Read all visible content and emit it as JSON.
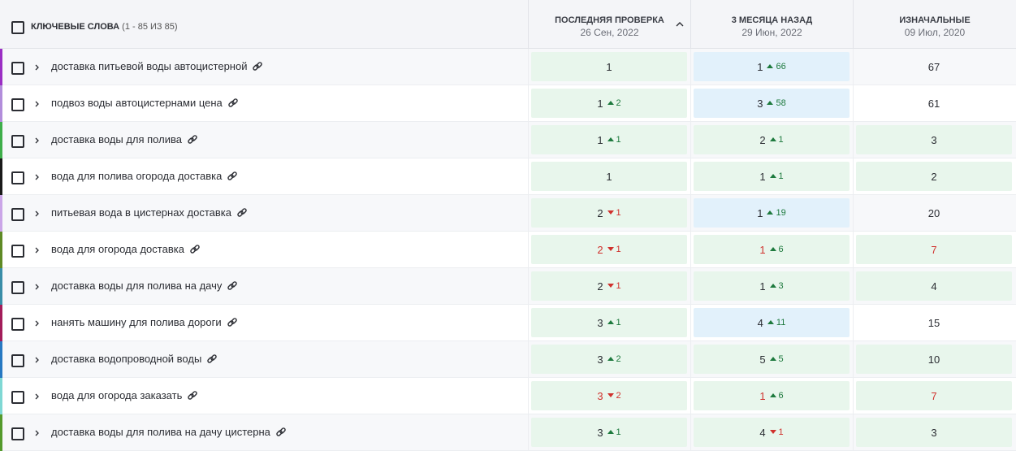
{
  "header": {
    "keywords_label": "КЛЮЧЕВЫЕ СЛОВА",
    "keywords_count": "(1 - 85 ИЗ 85)",
    "columns": [
      {
        "title": "ПОСЛЕДНЯЯ ПРОВЕРКА",
        "date": "26 Сен, 2022",
        "sorted": true
      },
      {
        "title": "3 МЕСЯЦА НАЗАД",
        "date": "29 Июн, 2022",
        "sorted": false
      },
      {
        "title": "ИЗНАЧАЛЬНЫЕ",
        "date": "09 Июл, 2020",
        "sorted": false
      }
    ]
  },
  "rows": [
    {
      "keyword": "доставка питьевой воды автоцистерной",
      "color": "#9b2fc4",
      "cells": [
        {
          "value": 1,
          "change": null,
          "direction": null,
          "bg": "green",
          "tone": "normal"
        },
        {
          "value": 1,
          "change": 66,
          "direction": "up",
          "bg": "blue",
          "tone": "normal"
        },
        {
          "value": 67,
          "change": null,
          "direction": null,
          "bg": "none",
          "tone": "normal"
        }
      ]
    },
    {
      "keyword": "подвоз воды автоцистернами цена",
      "color": "#b28ddb",
      "cells": [
        {
          "value": 1,
          "change": 2,
          "direction": "up",
          "bg": "green",
          "tone": "normal"
        },
        {
          "value": 3,
          "change": 58,
          "direction": "up",
          "bg": "blue",
          "tone": "normal"
        },
        {
          "value": 61,
          "change": null,
          "direction": null,
          "bg": "none",
          "tone": "normal"
        }
      ]
    },
    {
      "keyword": "доставка воды для полива",
      "color": "#3fae4a",
      "cells": [
        {
          "value": 1,
          "change": 1,
          "direction": "up",
          "bg": "green",
          "tone": "normal"
        },
        {
          "value": 2,
          "change": 1,
          "direction": "up",
          "bg": "green",
          "tone": "normal"
        },
        {
          "value": 3,
          "change": null,
          "direction": null,
          "bg": "green",
          "tone": "normal"
        }
      ]
    },
    {
      "keyword": "вода для полива огорода доставка",
      "color": "#1a1a1a",
      "cells": [
        {
          "value": 1,
          "change": null,
          "direction": null,
          "bg": "green",
          "tone": "normal"
        },
        {
          "value": 1,
          "change": 1,
          "direction": "up",
          "bg": "green",
          "tone": "normal"
        },
        {
          "value": 2,
          "change": null,
          "direction": null,
          "bg": "green",
          "tone": "normal"
        }
      ]
    },
    {
      "keyword": "питьевая вода в цистернах доставка",
      "color": "#cba6e8",
      "cells": [
        {
          "value": 2,
          "change": 1,
          "direction": "down",
          "bg": "green",
          "tone": "normal"
        },
        {
          "value": 1,
          "change": 19,
          "direction": "up",
          "bg": "blue",
          "tone": "normal"
        },
        {
          "value": 20,
          "change": null,
          "direction": null,
          "bg": "none",
          "tone": "normal"
        }
      ]
    },
    {
      "keyword": "вода для огорода доставка",
      "color": "#5f8a25",
      "cells": [
        {
          "value": 2,
          "change": 1,
          "direction": "down",
          "bg": "green",
          "tone": "red"
        },
        {
          "value": 1,
          "change": 6,
          "direction": "up",
          "bg": "green",
          "tone": "red"
        },
        {
          "value": 7,
          "change": null,
          "direction": null,
          "bg": "green",
          "tone": "red"
        }
      ]
    },
    {
      "keyword": "доставка воды для полива на дачу",
      "color": "#3a8ea8",
      "cells": [
        {
          "value": 2,
          "change": 1,
          "direction": "down",
          "bg": "green",
          "tone": "normal"
        },
        {
          "value": 1,
          "change": 3,
          "direction": "up",
          "bg": "green",
          "tone": "normal"
        },
        {
          "value": 4,
          "change": null,
          "direction": null,
          "bg": "green",
          "tone": "normal"
        }
      ]
    },
    {
      "keyword": "нанять машину для полива дороги",
      "color": "#a31d5a",
      "cells": [
        {
          "value": 3,
          "change": 1,
          "direction": "up",
          "bg": "green",
          "tone": "normal"
        },
        {
          "value": 4,
          "change": 11,
          "direction": "up",
          "bg": "blue",
          "tone": "normal"
        },
        {
          "value": 15,
          "change": null,
          "direction": null,
          "bg": "none",
          "tone": "normal"
        }
      ]
    },
    {
      "keyword": "доставка водопроводной воды",
      "color": "#2779c2",
      "cells": [
        {
          "value": 3,
          "change": 2,
          "direction": "up",
          "bg": "green",
          "tone": "normal"
        },
        {
          "value": 5,
          "change": 5,
          "direction": "up",
          "bg": "green",
          "tone": "normal"
        },
        {
          "value": 10,
          "change": null,
          "direction": null,
          "bg": "green",
          "tone": "normal"
        }
      ]
    },
    {
      "keyword": "вода для огорода заказать",
      "color": "#7fd8d4",
      "cells": [
        {
          "value": 3,
          "change": 2,
          "direction": "down",
          "bg": "green",
          "tone": "red"
        },
        {
          "value": 1,
          "change": 6,
          "direction": "up",
          "bg": "green",
          "tone": "red"
        },
        {
          "value": 7,
          "change": null,
          "direction": null,
          "bg": "green",
          "tone": "red"
        }
      ]
    },
    {
      "keyword": "доставка воды для полива на дачу цистерна",
      "color": "#549a2c",
      "cells": [
        {
          "value": 3,
          "change": 1,
          "direction": "up",
          "bg": "green",
          "tone": "normal"
        },
        {
          "value": 4,
          "change": 1,
          "direction": "down",
          "bg": "green",
          "tone": "normal"
        },
        {
          "value": 3,
          "change": null,
          "direction": null,
          "bg": "green",
          "tone": "normal"
        }
      ]
    }
  ]
}
